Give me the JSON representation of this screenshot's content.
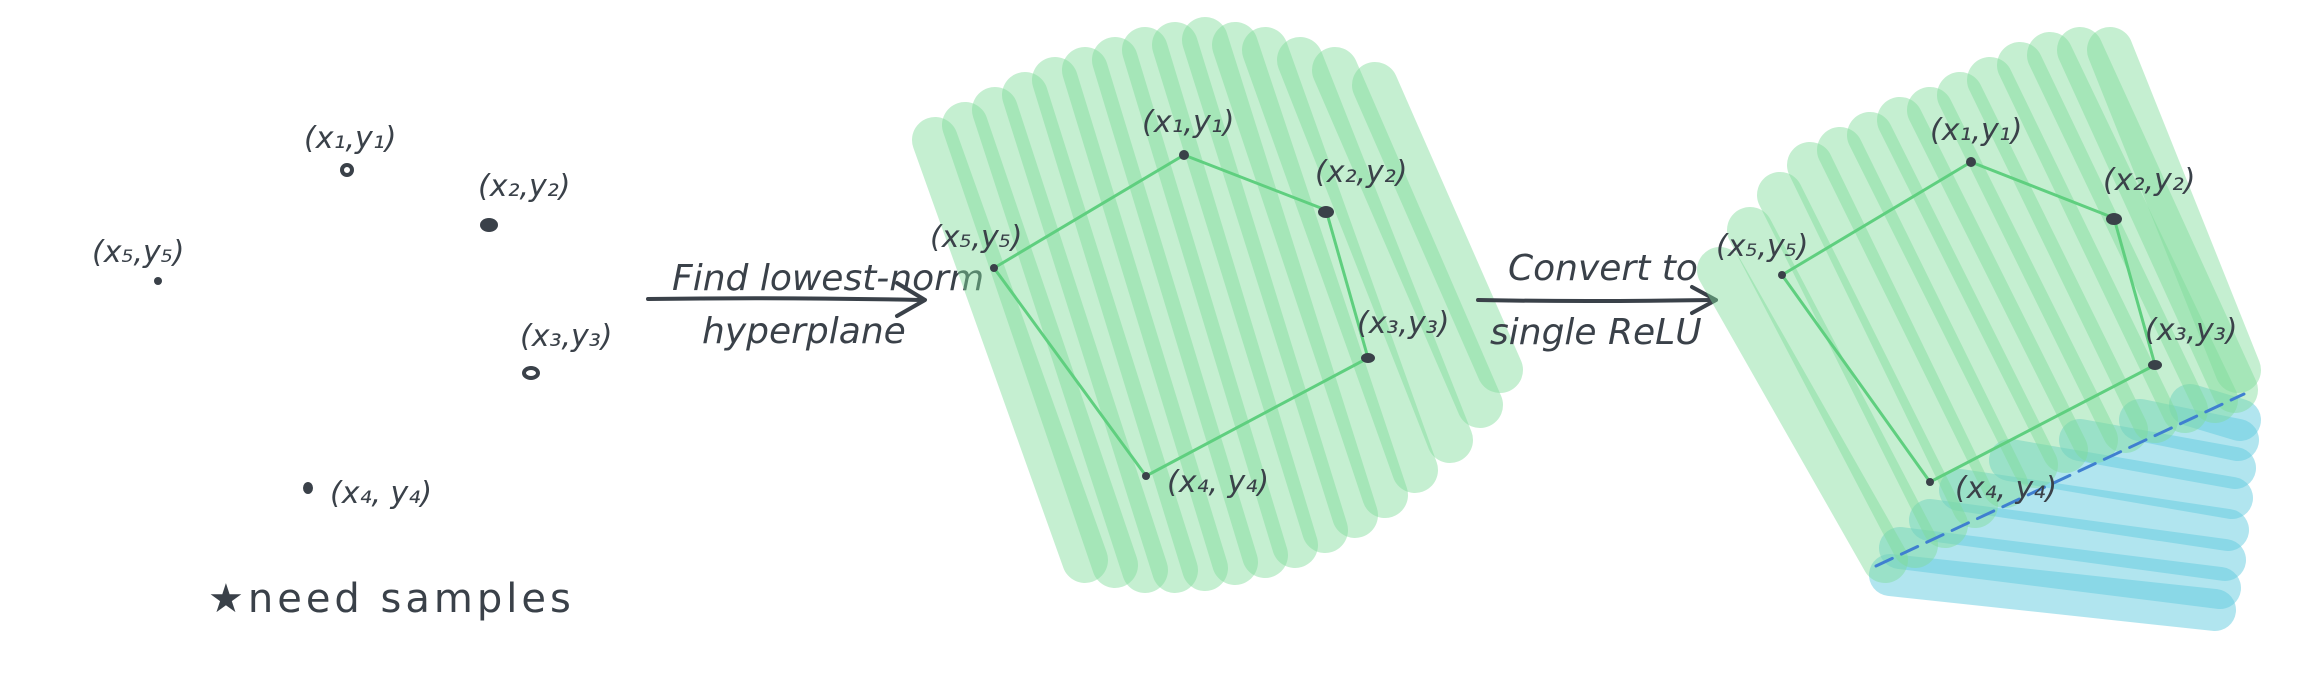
{
  "panel_1": {
    "labels": {
      "p1": "(x₁,y₁)",
      "p2": "(x₂,y₂)",
      "p3": "(x₃,y₃)",
      "p4": "(x₄, y₄)",
      "p5": "(x₅,y₅)"
    },
    "note": "★need samples"
  },
  "arrow_1": {
    "line1": "Find lowest-norm",
    "line2": "hyperplane"
  },
  "panel_2": {
    "labels": {
      "p1": "(x₁,y₁)",
      "p2": "(x₂,y₂)",
      "p3": "(x₃,y₃)",
      "p4": "(x₄, y₄)",
      "p5": "(x₅,y₅)"
    }
  },
  "arrow_2": {
    "line1": "Convert to",
    "line2": "single ReLU"
  },
  "panel_3": {
    "labels": {
      "p1": "(x₁,y₁)",
      "p2": "(x₂,y₂)",
      "p3": "(x₃,y₃)",
      "p4": "(x₄, y₄)",
      "p5": "(x₅,y₅)"
    }
  },
  "colors": {
    "ink": "#3a4149",
    "plane_green": "#7fdc9a",
    "plane_edge_green": "#5fcf7f",
    "relu_cyan": "#63cce0",
    "boundary_blue": "#3f7fd0"
  }
}
